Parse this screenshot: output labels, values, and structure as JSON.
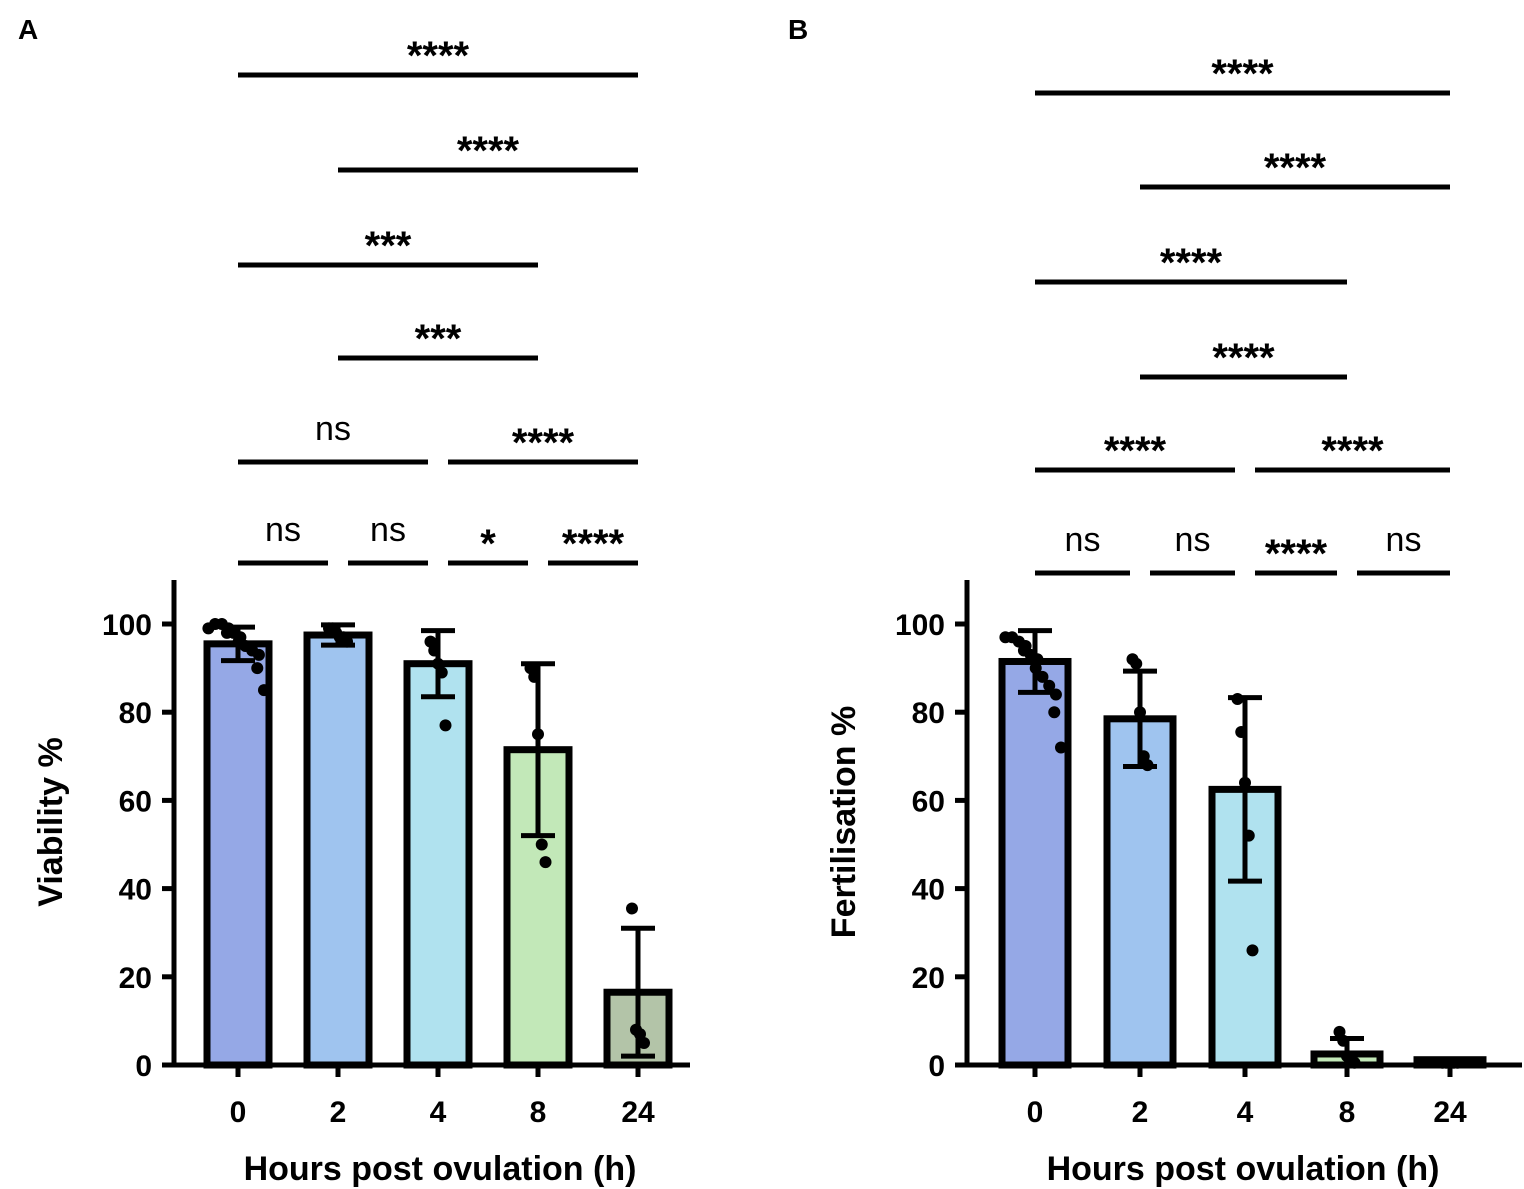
{
  "chart_data": [
    {
      "type": "bar",
      "panel": "A",
      "xlabel": "Hours post ovulation (h)",
      "ylabel": "Viability %",
      "ylim": [
        0,
        110
      ],
      "yticks": [
        0,
        20,
        40,
        60,
        80,
        100
      ],
      "categories": [
        "0",
        "2",
        "4",
        "8",
        "24"
      ],
      "values": [
        95.5,
        97.5,
        91,
        71.5,
        16.5
      ],
      "errors": [
        3.8,
        2.3,
        7.5,
        19.5,
        14.5
      ],
      "colors": [
        "#95a8e6",
        "#9fc4ef",
        "#b0e2ef",
        "#c2e8b8",
        "#b3c4a8"
      ],
      "points": [
        [
          99,
          100,
          100,
          99,
          98,
          98,
          97,
          96,
          95,
          94,
          93,
          90,
          85
        ],
        [
          99,
          99,
          98,
          97,
          97,
          96
        ],
        [
          96,
          94,
          91,
          89,
          77
        ],
        [
          90,
          88,
          75,
          50,
          46
        ],
        [
          35.5,
          8,
          7,
          5
        ]
      ],
      "comparisons": [
        {
          "from": 0,
          "to": 4,
          "label": "****"
        },
        {
          "from": 1,
          "to": 4,
          "label": "****"
        },
        {
          "from": 0,
          "to": 3,
          "label": "***"
        },
        {
          "from": 1,
          "to": 3,
          "label": "***"
        },
        {
          "from": 0,
          "to": 2,
          "label": "ns"
        },
        {
          "from": 2,
          "to": 4,
          "label": "****"
        },
        {
          "from": 0,
          "to": 1,
          "label": "ns"
        },
        {
          "from": 1,
          "to": 2,
          "label": "ns"
        },
        {
          "from": 2,
          "to": 3,
          "label": "*"
        },
        {
          "from": 3,
          "to": 4,
          "label": "****"
        }
      ]
    },
    {
      "type": "bar",
      "panel": "B",
      "xlabel": "Hours post ovulation (h)",
      "ylabel": "Fertilisation %",
      "ylim": [
        0,
        110
      ],
      "yticks": [
        0,
        20,
        40,
        60,
        80,
        100
      ],
      "categories": [
        "0",
        "2",
        "4",
        "8",
        "24"
      ],
      "values": [
        91.5,
        78.5,
        62.5,
        2.5,
        1.2
      ],
      "errors": [
        7,
        10.8,
        20.8,
        3.5,
        0.3
      ],
      "colors": [
        "#95a8e6",
        "#9fc4ef",
        "#b0e2ef",
        "#c2e8b8",
        "#b3c4a8"
      ],
      "points": [
        [
          97,
          97,
          96,
          95,
          94,
          93,
          92,
          90,
          88,
          86,
          84,
          80,
          72
        ],
        [
          92,
          91,
          80,
          70,
          68
        ],
        [
          83,
          75.5,
          64,
          52,
          26
        ],
        [
          7.5,
          5.5,
          2,
          1,
          0.5
        ],
        [
          0.5,
          0.5,
          0.5,
          0.5,
          0.5
        ]
      ],
      "comparisons": [
        {
          "from": 0,
          "to": 4,
          "label": "****"
        },
        {
          "from": 1,
          "to": 4,
          "label": "****"
        },
        {
          "from": 0,
          "to": 3,
          "label": "****"
        },
        {
          "from": 1,
          "to": 3,
          "label": "****"
        },
        {
          "from": 0,
          "to": 2,
          "label": "****"
        },
        {
          "from": 2,
          "to": 4,
          "label": "****"
        },
        {
          "from": 0,
          "to": 1,
          "label": "ns"
        },
        {
          "from": 1,
          "to": 2,
          "label": "ns"
        },
        {
          "from": 2,
          "to": 3,
          "label": "****"
        },
        {
          "from": 3,
          "to": 4,
          "label": "ns"
        }
      ]
    }
  ],
  "panels": {
    "a_label": "A",
    "b_label": "B"
  }
}
